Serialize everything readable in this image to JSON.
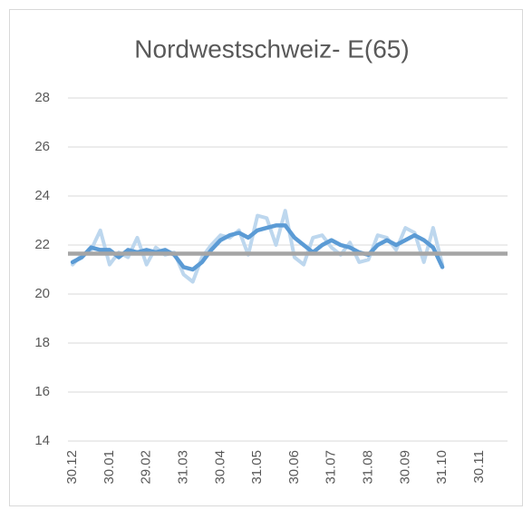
{
  "chart_data": {
    "type": "line",
    "title": "Nordwestschweiz- E(65)",
    "categories": [
      "30.12",
      null,
      null,
      null,
      "30.01",
      null,
      null,
      null,
      "29.02",
      null,
      null,
      null,
      "31.03",
      null,
      null,
      null,
      "30.04",
      null,
      null,
      null,
      "31.05",
      null,
      null,
      null,
      "30.06",
      null,
      null,
      null,
      "31.07",
      null,
      null,
      null,
      "31.08",
      null,
      null,
      null,
      "30.09",
      null,
      null,
      null,
      "31.10",
      null,
      null,
      null,
      "30.11"
    ],
    "series": [
      {
        "color": "#bdd7ee",
        "width": 4,
        "values": [
          21.2,
          21.6,
          21.8,
          22.6,
          21.2,
          21.7,
          21.5,
          22.3,
          21.2,
          21.9,
          21.6,
          21.7,
          20.8,
          20.5,
          21.5,
          22.0,
          22.4,
          22.3,
          22.6,
          21.6,
          23.2,
          23.1,
          22.0,
          23.4,
          21.5,
          21.2,
          22.3,
          22.4,
          21.9,
          21.6,
          22.1,
          21.3,
          21.4,
          22.4,
          22.3,
          21.8,
          22.7,
          22.5,
          21.3,
          22.7,
          21.2,
          null,
          null,
          null,
          null
        ]
      },
      {
        "color": "#5b9bd5",
        "width": 4.5,
        "values": [
          21.3,
          21.5,
          21.9,
          21.8,
          21.8,
          21.5,
          21.8,
          21.7,
          21.8,
          21.7,
          21.8,
          21.6,
          21.1,
          21.0,
          21.3,
          21.8,
          22.2,
          22.4,
          22.5,
          22.3,
          22.6,
          22.7,
          22.8,
          22.8,
          22.3,
          22.0,
          21.7,
          22.0,
          22.2,
          22.0,
          21.9,
          21.7,
          21.6,
          22.0,
          22.2,
          22.0,
          22.2,
          22.4,
          22.2,
          21.9,
          21.1,
          null,
          null,
          null,
          null
        ]
      }
    ],
    "reference_line": {
      "value": 21.65,
      "color": "#a5a5a5"
    },
    "ylim": [
      14,
      28
    ],
    "yticks": [
      14,
      16,
      18,
      20,
      22,
      24,
      26,
      28
    ],
    "grid": true
  }
}
